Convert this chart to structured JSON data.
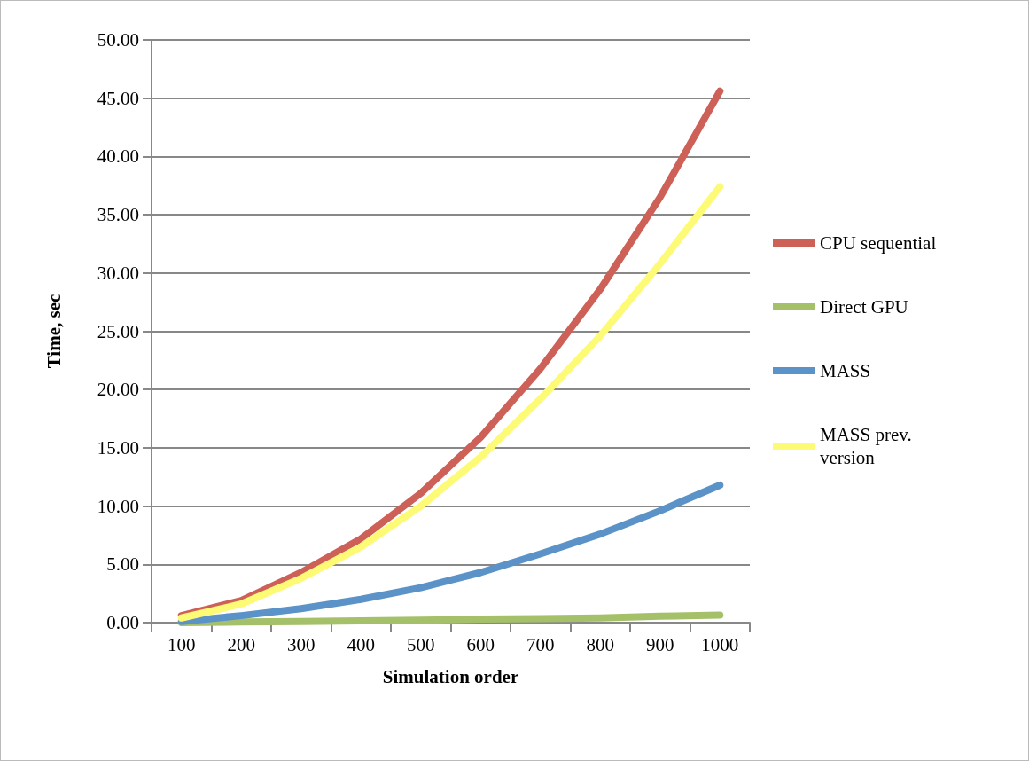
{
  "chart_data": {
    "type": "line",
    "xlabel": "Simulation order",
    "ylabel": "Time, sec",
    "categories": [
      "100",
      "200",
      "300",
      "400",
      "500",
      "600",
      "700",
      "800",
      "900",
      "1000"
    ],
    "series": [
      {
        "name": "CPU sequential",
        "color": "#cd6158",
        "values": [
          0.6,
          1.9,
          4.3,
          7.2,
          11.1,
          15.9,
          21.8,
          28.6,
          36.5,
          45.6
        ]
      },
      {
        "name": "Direct GPU",
        "color": "#a4c16a",
        "values": [
          0.0,
          0.05,
          0.1,
          0.15,
          0.2,
          0.3,
          0.35,
          0.4,
          0.55,
          0.65
        ]
      },
      {
        "name": "MASS",
        "color": "#5b93c8",
        "values": [
          0.1,
          0.6,
          1.2,
          2.0,
          3.0,
          4.3,
          5.9,
          7.6,
          9.6,
          11.8
        ]
      },
      {
        "name": "MASS prev. version",
        "color": "#fdfb75",
        "values": [
          0.4,
          1.6,
          3.8,
          6.5,
          10.0,
          14.2,
          19.2,
          24.6,
          30.8,
          37.4
        ]
      }
    ],
    "ylim": [
      0,
      50
    ],
    "yticks": [
      {
        "value": 0,
        "label": "0.00"
      },
      {
        "value": 5,
        "label": "5.00"
      },
      {
        "value": 10,
        "label": "10.00"
      },
      {
        "value": 15,
        "label": "15.00"
      },
      {
        "value": 20,
        "label": "20.00"
      },
      {
        "value": 25,
        "label": "25.00"
      },
      {
        "value": 30,
        "label": "30.00"
      },
      {
        "value": 35,
        "label": "35.00"
      },
      {
        "value": 40,
        "label": "40.00"
      },
      {
        "value": 45,
        "label": "45.00"
      },
      {
        "value": 50,
        "label": "50.00"
      }
    ],
    "grid": "y",
    "legend": "right",
    "marker": "none",
    "line_style": "solid"
  }
}
